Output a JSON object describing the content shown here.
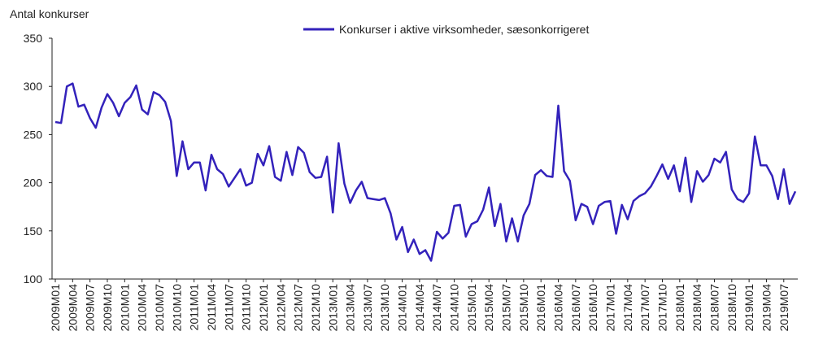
{
  "chart_data": {
    "type": "line",
    "y_label": "Antal konkurser",
    "ylim": [
      100,
      350
    ],
    "yticks": [
      100,
      150,
      200,
      250,
      300,
      350
    ],
    "categories": [
      "2009M01",
      null,
      null,
      "2009M04",
      null,
      null,
      "2009M07",
      null,
      null,
      "2009M10",
      null,
      null,
      "2010M01",
      null,
      null,
      "2010M04",
      null,
      null,
      "2010M07",
      null,
      null,
      "2010M10",
      null,
      null,
      "2011M01",
      null,
      null,
      "2011M04",
      null,
      null,
      "2011M07",
      null,
      null,
      "2011M10",
      null,
      null,
      "2012M01",
      null,
      null,
      "2012M04",
      null,
      null,
      "2012M07",
      null,
      null,
      "2012M10",
      null,
      null,
      "2013M01",
      null,
      null,
      "2013M04",
      null,
      null,
      "2013M07",
      null,
      null,
      "2013M10",
      null,
      null,
      "2014M01",
      null,
      null,
      "2014M04",
      null,
      null,
      "2014M07",
      null,
      null,
      "2014M10",
      null,
      null,
      "2015M01",
      null,
      null,
      "2015M04",
      null,
      null,
      "2015M07",
      null,
      null,
      "2015M10",
      null,
      null,
      "2016M01",
      null,
      null,
      "2016M04",
      null,
      null,
      "2016M07",
      null,
      null,
      "2016M10",
      null,
      null,
      "2017M01",
      null,
      null,
      "2017M04",
      null,
      null,
      "2017M07",
      null,
      null,
      "2017M10",
      null,
      null,
      "2018M01",
      null,
      null,
      "2018M04",
      null,
      null,
      "2018M07",
      null,
      null,
      "2018M10",
      null,
      null,
      "2019M01",
      null,
      null,
      "2019M04",
      null,
      null,
      "2019M07",
      null,
      null
    ],
    "series": [
      {
        "name": "Konkurser i aktive virksomheder, sæsonkorrigeret",
        "color": "#3322bb",
        "values": [
          263,
          262,
          300,
          303,
          279,
          281,
          267,
          257,
          278,
          292,
          283,
          269,
          283,
          289,
          301,
          276,
          271,
          294,
          291,
          284,
          264,
          207,
          243,
          214,
          221,
          221,
          192,
          229,
          214,
          209,
          196,
          205,
          214,
          197,
          200,
          230,
          218,
          238,
          206,
          202,
          232,
          208,
          237,
          231,
          211,
          205,
          206,
          227,
          169,
          241,
          199,
          179,
          192,
          201,
          184,
          183,
          182,
          184,
          168,
          141,
          154,
          128,
          141,
          126,
          130,
          119,
          149,
          142,
          148,
          176,
          177,
          144,
          157,
          160,
          172,
          195,
          155,
          178,
          139,
          163,
          139,
          166,
          178,
          208,
          213,
          207,
          206,
          280,
          212,
          202,
          161,
          178,
          175,
          157,
          176,
          180,
          181,
          147,
          177,
          162,
          181,
          186,
          189,
          196,
          207,
          219,
          204,
          218,
          191,
          226,
          180,
          212,
          201,
          208,
          225,
          221,
          232,
          193,
          183,
          180,
          189,
          248,
          218,
          218,
          207,
          183,
          214,
          178,
          191
        ]
      }
    ]
  }
}
